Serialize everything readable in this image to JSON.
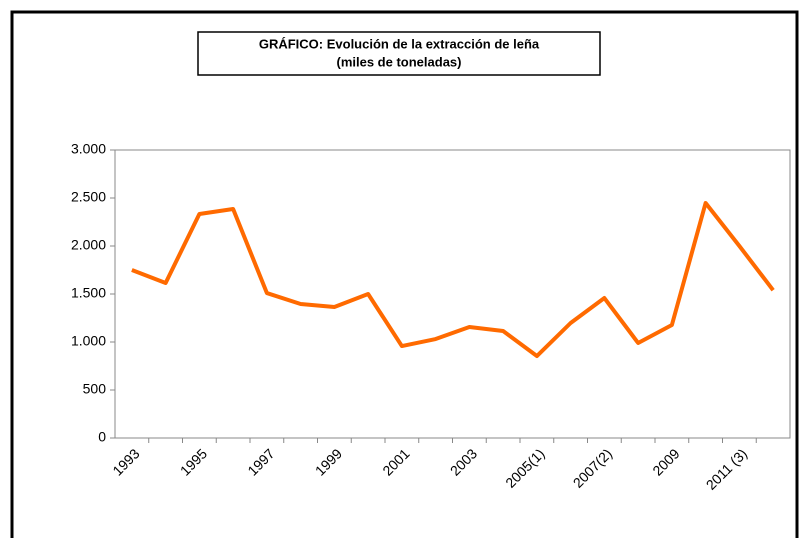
{
  "chart_data": {
    "type": "line",
    "title": "GRÁFICO: Evolución de la extracción de leña",
    "subtitle": "(miles de toneladas)",
    "categories": [
      "1993",
      null,
      "1995",
      null,
      "1997",
      null,
      "1999",
      null,
      "2001",
      null,
      "2003",
      null,
      "2005(1)",
      null,
      "2007(2)",
      null,
      "2009",
      null,
      "2011 (3)",
      null
    ],
    "series": [
      {
        "color": "#ff6a00",
        "values": [
          1750,
          1615,
          2333,
          2385,
          1510,
          1396,
          1365,
          1500,
          958,
          1031,
          1156,
          1115,
          854,
          1198,
          1458,
          990,
          1177,
          2448,
          2000,
          1540
        ]
      }
    ],
    "ylim": [
      0,
      3000
    ],
    "yticks": [
      0,
      500,
      {
        "value": 1000,
        "label": "1.000"
      },
      {
        "value": 1500,
        "label": "1.500"
      },
      {
        "value": 2000,
        "label": "2.000"
      },
      {
        "value": 2500,
        "label": "2.500"
      },
      {
        "value": 3000,
        "label": "3.000"
      }
    ],
    "grid": false
  }
}
